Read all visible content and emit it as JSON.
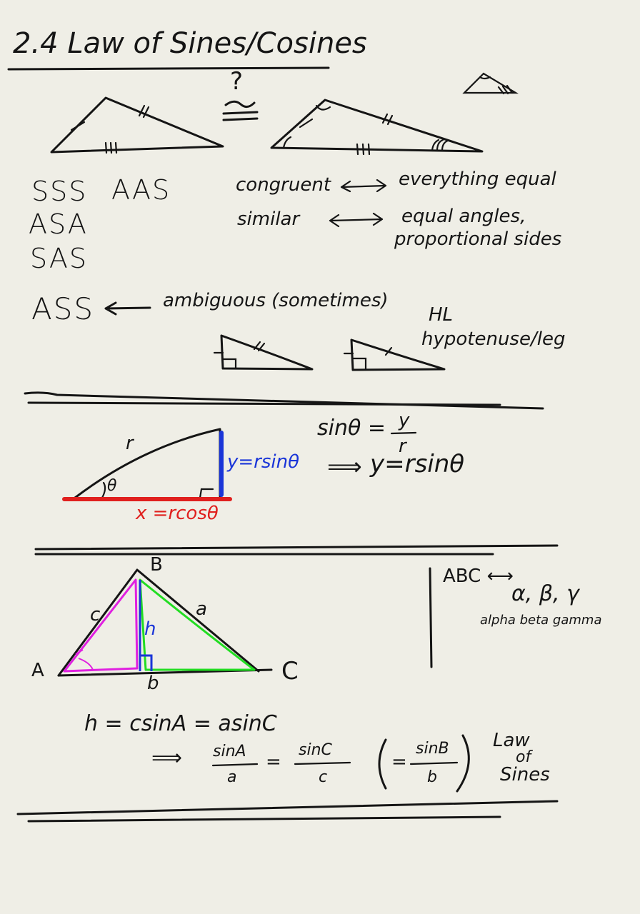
{
  "title": "2.4 Law of Sines/Cosines",
  "question_mark": "?",
  "congruence_rules": [
    "SSS",
    "AAS",
    "ASA",
    "SAS"
  ],
  "definitions": {
    "congruent_term": "congruent",
    "congruent_meaning": "everything equal",
    "similar_term": "similar",
    "similar_meaning_1": "equal angles,",
    "similar_meaning_2": "proportional sides",
    "arrow": "⟷"
  },
  "ass": {
    "label": "ASS",
    "arrow": "⟵",
    "note": "ambiguous (sometimes)"
  },
  "hl": {
    "label": "HL",
    "note": "hypotenuse/leg"
  },
  "trig": {
    "r_label": "r",
    "theta_label": "θ",
    "y_label": "y=rsinθ",
    "x_label": "x =rcosθ",
    "sin_lhs": "sinθ =",
    "sin_num": "y",
    "sin_den": "r",
    "implies": "⟹",
    "result": "y=rsinθ",
    "colors": {
      "y": "#1a35d8",
      "x": "#e0201e"
    }
  },
  "law_triangle": {
    "vertex_A": "A",
    "vertex_B": "B",
    "vertex_C": "C",
    "side_a": "a",
    "side_b": "b",
    "side_c": "c",
    "height": "h",
    "colors": {
      "left": "#e020e0",
      "right": "#22dd22",
      "height": "#1a35d8"
    }
  },
  "greek": {
    "mapping": "ABC ⟷",
    "letters": "α, β, γ",
    "names": "alpha beta gamma"
  },
  "derivation": {
    "line1": "h = csinA = asinC",
    "implies": "⟹",
    "f1_num": "sinA",
    "f1_den": "a",
    "eq1": "=",
    "f2_num": "sinC",
    "f2_den": "c",
    "paren_eq": "=",
    "f3_num": "sinB",
    "f3_den": "b",
    "law_1": "Law",
    "law_2": "of",
    "law_3": "Sines"
  }
}
